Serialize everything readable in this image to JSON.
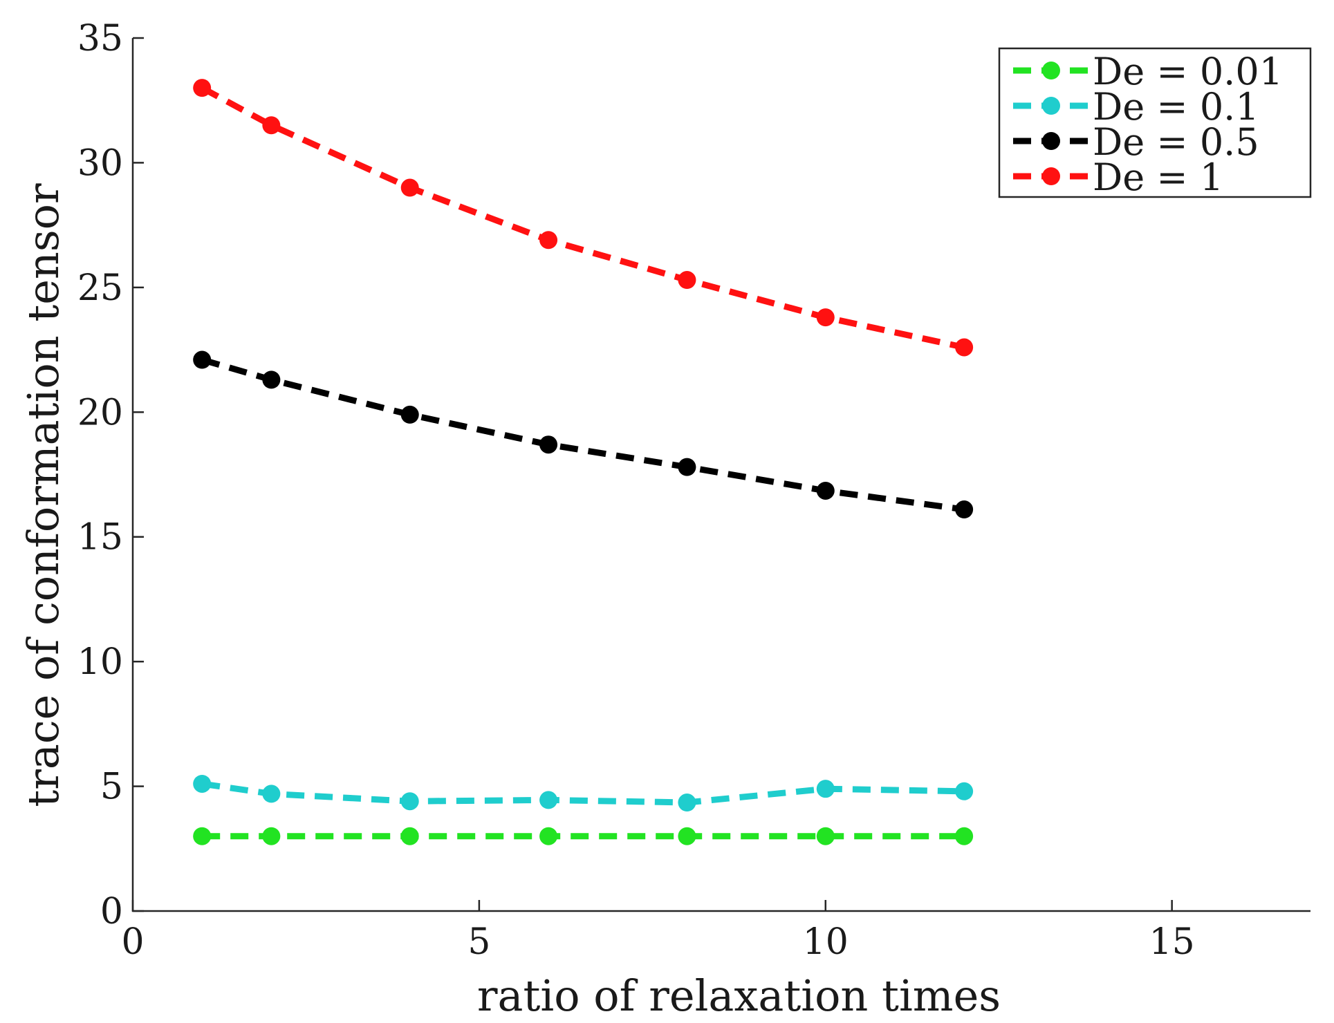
{
  "chart_data": {
    "type": "line",
    "title": "",
    "xlabel": "ratio of relaxation times",
    "ylabel": "trace of conformation tensor",
    "xlim": [
      0,
      17
    ],
    "ylim": [
      0,
      35
    ],
    "xticks": [
      0,
      5,
      10,
      15
    ],
    "yticks": [
      0,
      5,
      10,
      15,
      20,
      25,
      30,
      35
    ],
    "xtick_labels": [
      "0",
      "5",
      "10",
      "15"
    ],
    "ytick_labels": [
      "0",
      "5",
      "10",
      "15",
      "20",
      "25",
      "30",
      "35"
    ],
    "grid": false,
    "legend_position": "top-right",
    "line_style": "dashed",
    "marker": "circle",
    "x": [
      1,
      2,
      4,
      6,
      8,
      10,
      12
    ],
    "series": [
      {
        "name": "De = 0.01",
        "color": "#22e322",
        "values": [
          3.0,
          3.0,
          3.0,
          3.0,
          3.0,
          3.0,
          3.0
        ]
      },
      {
        "name": "De = 0.1",
        "color": "#1fcdcd",
        "values": [
          5.1,
          4.7,
          4.4,
          4.45,
          4.35,
          4.9,
          4.8
        ]
      },
      {
        "name": "De = 0.5",
        "color": "#000000",
        "values": [
          22.1,
          21.3,
          19.9,
          18.7,
          17.8,
          16.85,
          16.1
        ]
      },
      {
        "name": "De = 1",
        "color": "#ff1111",
        "values": [
          33.0,
          31.5,
          29.0,
          26.9,
          25.3,
          23.8,
          22.6
        ]
      }
    ]
  }
}
